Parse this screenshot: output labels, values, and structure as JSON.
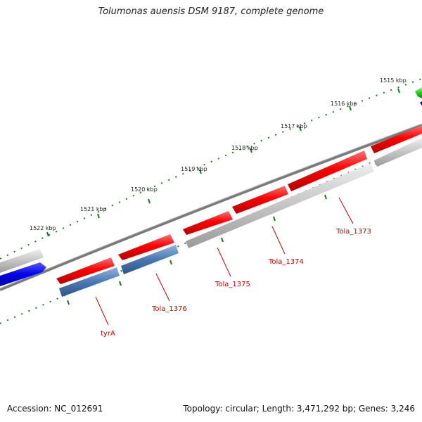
{
  "title": "Tolumonas auensis DSM 9187, complete genome",
  "accession": "Accession: NC_012691",
  "topology": "Topology: circular; Length: 3,471,292 bp; Genes: 3,246",
  "ruler": {
    "labels": [
      "1515 kbp",
      "1516 kbp",
      "1517 kbp",
      "1518 kbp",
      "1519 kbp",
      "1520 kbp",
      "1521 kbp",
      "1522 kbp"
    ]
  },
  "genes": {
    "labels": [
      "Tola_1373",
      "Tola_1374",
      "Tola_1375",
      "Tola_1376",
      "tyrA"
    ]
  },
  "colors": {
    "cds": "#ff0000",
    "gene": "#c0c0c0",
    "blue_feature": "#4a78b4",
    "green_feature": "#22cc22",
    "dark_blue_feature": "#0000ee",
    "tick": "#1a7a1a",
    "backbone": "#777777",
    "label": "#cc0000"
  }
}
